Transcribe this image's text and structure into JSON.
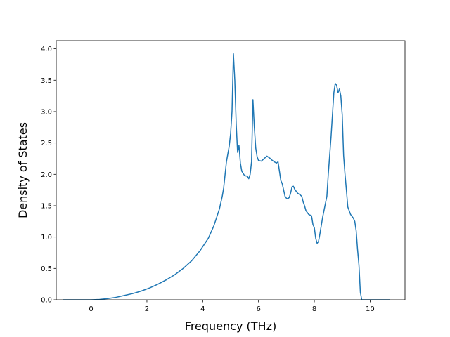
{
  "chart_data": {
    "type": "line",
    "title": "",
    "xlabel": "Frequency (THz)",
    "ylabel": "Density of States",
    "xlim": [
      -1.25,
      11.25
    ],
    "ylim": [
      0.0,
      4.13
    ],
    "xticks": [
      0,
      2,
      4,
      6,
      8,
      10
    ],
    "xtick_labels": [
      "0",
      "2",
      "4",
      "6",
      "8",
      "10"
    ],
    "yticks": [
      0.0,
      0.5,
      1.0,
      1.5,
      2.0,
      2.5,
      3.0,
      3.5,
      4.0
    ],
    "ytick_labels": [
      "0.0",
      "0.5",
      "1.0",
      "1.5",
      "2.0",
      "2.5",
      "3.0",
      "3.5",
      "4.0"
    ],
    "grid": false,
    "legend": false,
    "color": "#1f77b4",
    "series": [
      {
        "x": [
          -1.0,
          -0.5,
          0.0,
          0.3,
          0.6,
          0.9,
          1.2,
          1.5,
          1.8,
          2.1,
          2.4,
          2.7,
          3.0,
          3.3,
          3.6,
          3.9,
          4.2,
          4.4,
          4.6,
          4.7,
          4.75,
          4.85,
          4.95,
          5.0,
          5.05,
          5.1,
          5.15,
          5.2,
          5.25,
          5.3,
          5.35,
          5.4,
          5.5,
          5.6,
          5.65,
          5.7,
          5.75,
          5.8,
          5.85,
          5.9,
          5.95,
          6.0,
          6.1,
          6.2,
          6.3,
          6.4,
          6.5,
          6.6,
          6.65,
          6.7,
          6.75,
          6.8,
          6.85,
          6.9,
          6.95,
          7.0,
          7.05,
          7.1,
          7.15,
          7.2,
          7.25,
          7.3,
          7.4,
          7.5,
          7.55,
          7.6,
          7.65,
          7.7,
          7.8,
          7.9,
          7.95,
          8.0,
          8.05,
          8.1,
          8.15,
          8.2,
          8.3,
          8.45,
          8.5,
          8.6,
          8.7,
          8.75,
          8.8,
          8.85,
          8.9,
          8.95,
          9.0,
          9.05,
          9.1,
          9.15,
          9.2,
          9.25,
          9.3,
          9.4,
          9.45,
          9.5,
          9.55,
          9.6,
          9.65,
          9.7,
          9.75,
          9.8,
          9.9,
          10.0,
          10.3,
          10.7
        ],
        "y": [
          0.0,
          0.0,
          0.0,
          0.005,
          0.02,
          0.04,
          0.07,
          0.1,
          0.14,
          0.19,
          0.25,
          0.32,
          0.4,
          0.5,
          0.62,
          0.78,
          0.98,
          1.18,
          1.45,
          1.65,
          1.78,
          2.2,
          2.45,
          2.65,
          3.0,
          3.92,
          3.5,
          2.8,
          2.35,
          2.46,
          2.18,
          2.05,
          1.98,
          1.97,
          1.93,
          2.0,
          2.2,
          3.19,
          2.75,
          2.42,
          2.28,
          2.22,
          2.21,
          2.25,
          2.29,
          2.26,
          2.22,
          2.19,
          2.18,
          2.2,
          2.05,
          1.9,
          1.85,
          1.75,
          1.65,
          1.62,
          1.61,
          1.63,
          1.7,
          1.8,
          1.81,
          1.76,
          1.7,
          1.67,
          1.65,
          1.56,
          1.5,
          1.42,
          1.36,
          1.34,
          1.2,
          1.15,
          0.98,
          0.9,
          0.93,
          1.05,
          1.32,
          1.65,
          2.0,
          2.6,
          3.3,
          3.45,
          3.42,
          3.3,
          3.36,
          3.25,
          2.95,
          2.3,
          2.0,
          1.75,
          1.48,
          1.42,
          1.36,
          1.3,
          1.25,
          1.1,
          0.8,
          0.55,
          0.12,
          0.0,
          0.0,
          0.0,
          0.0,
          0.0,
          0.0,
          0.0
        ]
      }
    ]
  }
}
